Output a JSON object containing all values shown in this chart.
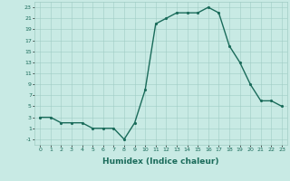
{
  "x": [
    0,
    1,
    2,
    3,
    4,
    5,
    6,
    7,
    8,
    9,
    10,
    11,
    12,
    13,
    14,
    15,
    16,
    17,
    18,
    19,
    20,
    21,
    22,
    23
  ],
  "y": [
    3,
    3,
    2,
    2,
    2,
    1,
    1,
    1,
    -1,
    2,
    8,
    20,
    21,
    22,
    22,
    22,
    23,
    22,
    16,
    13,
    9,
    6,
    6,
    5
  ],
  "line_color": "#1a6b5a",
  "marker": ".",
  "marker_color": "#1a6b5a",
  "bg_color": "#c8eae4",
  "grid_color": "#a0ccC4",
  "xlabel": "Humidex (Indice chaleur)",
  "xlim": [
    -0.5,
    23.5
  ],
  "ylim": [
    -2,
    24
  ],
  "xticks": [
    0,
    1,
    2,
    3,
    4,
    5,
    6,
    7,
    8,
    9,
    10,
    11,
    12,
    13,
    14,
    15,
    16,
    17,
    18,
    19,
    20,
    21,
    22,
    23
  ],
  "yticks": [
    -1,
    1,
    3,
    5,
    7,
    9,
    11,
    13,
    15,
    17,
    19,
    21,
    23
  ],
  "tick_fontsize": 4.5,
  "xlabel_fontsize": 6.5,
  "linewidth": 1.0,
  "markersize": 2.5
}
